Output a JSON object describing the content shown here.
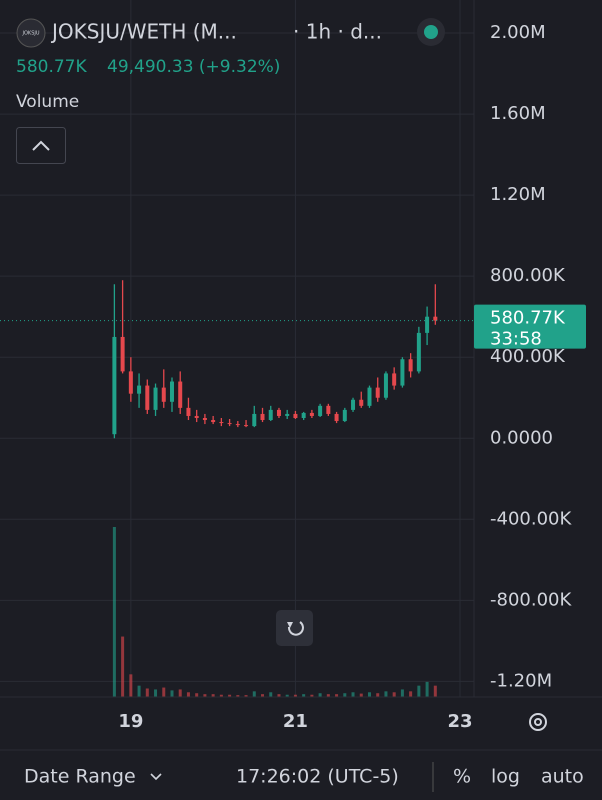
{
  "header": {
    "icon_text": "JOKSJU",
    "symbol": "JOKSJU/WETH (M...",
    "interval": "· 1h · d...",
    "last_price": "580.77K",
    "change": "49,490.33 (+9.32%)",
    "pane": "Volume"
  },
  "footer": {
    "date_range": "Date Range",
    "time": "17:26:02 (UTC-5)",
    "percent": "%",
    "log": "log",
    "auto": "auto"
  },
  "chart_data": {
    "type": "candlestick",
    "x": [
      18.8,
      18.9,
      19.0,
      19.1,
      19.2,
      19.3,
      19.4,
      19.5,
      19.6,
      19.7,
      19.8,
      19.9,
      20.0,
      20.1,
      20.2,
      20.3,
      20.4,
      20.5,
      20.6,
      20.7,
      20.8,
      20.9,
      21.0,
      21.1,
      21.2,
      21.3,
      21.4,
      21.5,
      21.6,
      21.7,
      21.8,
      21.9,
      22.0,
      22.1,
      22.2,
      22.3,
      22.4,
      22.5,
      22.6,
      22.7
    ],
    "open": [
      20000,
      500000,
      330000,
      220000,
      260000,
      140000,
      250000,
      180000,
      280000,
      150000,
      110000,
      100000,
      90000,
      80000,
      75000,
      70000,
      65000,
      60000,
      120000,
      90000,
      140000,
      110000,
      120000,
      100000,
      125000,
      110000,
      160000,
      120000,
      85000,
      140000,
      190000,
      160000,
      250000,
      200000,
      320000,
      260000,
      390000,
      330000,
      520000,
      600000
    ],
    "high": [
      760000,
      780000,
      400000,
      320000,
      290000,
      270000,
      340000,
      300000,
      330000,
      200000,
      140000,
      120000,
      110000,
      100000,
      95000,
      85000,
      90000,
      160000,
      150000,
      160000,
      150000,
      140000,
      135000,
      130000,
      140000,
      170000,
      170000,
      130000,
      150000,
      200000,
      230000,
      260000,
      300000,
      330000,
      350000,
      400000,
      420000,
      550000,
      650000,
      760000
    ],
    "low": [
      0,
      320000,
      180000,
      150000,
      120000,
      110000,
      150000,
      130000,
      120000,
      90000,
      80000,
      70000,
      70000,
      60000,
      60000,
      55000,
      55000,
      55000,
      80000,
      85000,
      100000,
      95000,
      95000,
      90000,
      100000,
      105000,
      110000,
      75000,
      80000,
      130000,
      150000,
      150000,
      180000,
      190000,
      240000,
      250000,
      300000,
      320000,
      460000,
      560000
    ],
    "close": [
      500000,
      330000,
      220000,
      260000,
      140000,
      250000,
      180000,
      280000,
      150000,
      110000,
      100000,
      90000,
      80000,
      75000,
      70000,
      65000,
      60000,
      120000,
      90000,
      140000,
      110000,
      120000,
      100000,
      125000,
      110000,
      160000,
      120000,
      85000,
      140000,
      190000,
      160000,
      250000,
      200000,
      320000,
      260000,
      390000,
      330000,
      520000,
      600000,
      580770
    ],
    "volume": [
      900,
      320,
      120,
      60,
      45,
      40,
      50,
      35,
      40,
      25,
      20,
      15,
      15,
      12,
      12,
      10,
      10,
      30,
      15,
      25,
      15,
      12,
      12,
      15,
      12,
      20,
      15,
      15,
      20,
      25,
      18,
      25,
      20,
      30,
      25,
      40,
      30,
      60,
      80,
      60
    ],
    "up_color": "#21a28a",
    "down_color": "#e5484d",
    "xlim": [
      17.41,
      23.17
    ],
    "xticks": [
      {
        "value": 19,
        "label": "19"
      },
      {
        "value": 21,
        "label": "21"
      },
      {
        "value": 23,
        "label": "23"
      }
    ],
    "ylim": [
      -1277000,
      2163000
    ],
    "yticks": [
      {
        "value": 2000000,
        "label": "2.00M"
      },
      {
        "value": 1600000,
        "label": "1.60M"
      },
      {
        "value": 1200000,
        "label": "1.20M"
      },
      {
        "value": 800000,
        "label": "800.00K"
      },
      {
        "value": 400000,
        "label": "400.00K"
      },
      {
        "value": 0,
        "label": "0.0000"
      },
      {
        "value": -400000,
        "label": "-400.00K"
      },
      {
        "value": -800000,
        "label": "-800.00K"
      },
      {
        "value": -1200000,
        "label": "-1.20M"
      }
    ],
    "grid": true,
    "price_label": "580.77K",
    "countdown": "33:58"
  }
}
